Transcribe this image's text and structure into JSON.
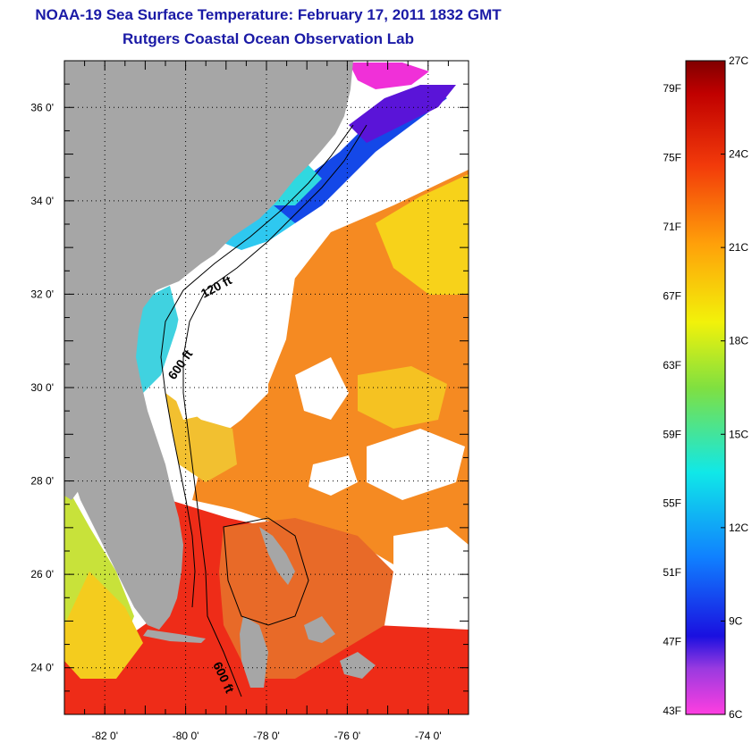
{
  "title": "NOAA-19 Sea Surface Temperature:  February 17, 2011 1832 GMT",
  "subtitle": "Rutgers Coastal Ocean Observation Lab",
  "map": {
    "lon_range": [
      -83.0,
      -73.0
    ],
    "lat_range": [
      23.0,
      37.0
    ],
    "lon_ticks": [
      {
        "value": -82,
        "label": "-82 0'"
      },
      {
        "value": -80,
        "label": "-80 0'"
      },
      {
        "value": -78,
        "label": "-78 0'"
      },
      {
        "value": -76,
        "label": "-76 0'"
      },
      {
        "value": -74,
        "label": "-74 0'"
      }
    ],
    "lat_ticks": [
      {
        "value": 36,
        "label": "36 0'"
      },
      {
        "value": 34,
        "label": "34 0'"
      },
      {
        "value": 32,
        "label": "32 0'"
      },
      {
        "value": 30,
        "label": "30 0'"
      },
      {
        "value": 28,
        "label": "28 0'"
      },
      {
        "value": 26,
        "label": "26 0'"
      },
      {
        "value": 24,
        "label": "24 0'"
      }
    ],
    "isobath_labels": [
      "120 ft",
      "600 ft",
      "600 ft"
    ],
    "colors": {
      "land": "#a6a6a6",
      "cloud": "#ffffff",
      "gulfstream": "#ee2a16",
      "offshore": "#f6821e"
    }
  },
  "colorbar": {
    "fahrenheit": [
      "79F",
      "75F",
      "71F",
      "67F",
      "63F",
      "59F",
      "55F",
      "51F",
      "47F",
      "43F"
    ],
    "celsius": [
      "27C",
      "24C",
      "21C",
      "18C",
      "15C",
      "12C",
      "9C",
      "6C"
    ],
    "range_c": [
      6,
      27
    ]
  }
}
